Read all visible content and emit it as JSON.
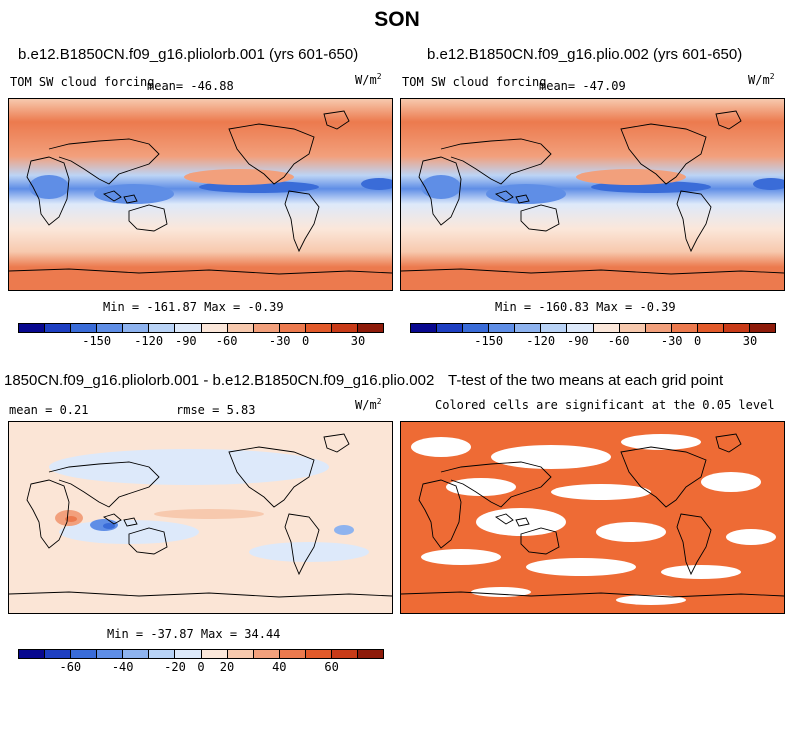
{
  "title": "SON",
  "panels": {
    "top_left": {
      "title": "b.e12.B1850CN.f09_g16.pliolorb.001 (yrs 601-650)",
      "variable": "TOM SW cloud forcing",
      "mean": "mean= -46.88",
      "units_base": "W/m",
      "units_exp": "2",
      "stats": "Min = -161.87 Max =  -0.39"
    },
    "top_right": {
      "title": "b.e12.B1850CN.f09_g16.plio.002 (yrs 601-650)",
      "variable": "TOM SW cloud forcing",
      "mean": "mean= -47.09",
      "units_base": "W/m",
      "units_exp": "2",
      "stats": "Min = -160.83 Max =  -0.39"
    },
    "bottom_left": {
      "title": "1850CN.f09_g16.pliolorb.001 - b.e12.B1850CN.f09_g16.plio.002",
      "mean": "mean =   0.21",
      "rmse": "rmse =   5.83",
      "units_base": "W/m",
      "units_exp": "2",
      "stats": "Min = -37.87 Max =  34.44"
    },
    "bottom_right": {
      "title": "T-test of the two means at each grid point",
      "subtitle": "Colored cells are significant at the 0.05 level"
    }
  },
  "colorbars": {
    "top_ticks": [
      "-150",
      "-120",
      "-90",
      "-60",
      "-30",
      "0",
      "30"
    ],
    "diff_ticks": [
      "-60",
      "-40",
      "-20",
      "0",
      "20",
      "40",
      "60"
    ],
    "colors": [
      "#08088f",
      "#1e3fc2",
      "#3a6cd8",
      "#5f8ee6",
      "#8eb3ef",
      "#b9d3f6",
      "#dde9fa",
      "#fbe7da",
      "#f7c9ae",
      "#f2a07c",
      "#ec7a4e",
      "#e25a2a",
      "#c83b18",
      "#8e1b0a"
    ]
  },
  "colors": {
    "ocean_positive": "#fbe5d6",
    "significant": "#ee6b35",
    "strong_negative": "#4f84e2",
    "weak_negative": "#bcd4f5"
  }
}
